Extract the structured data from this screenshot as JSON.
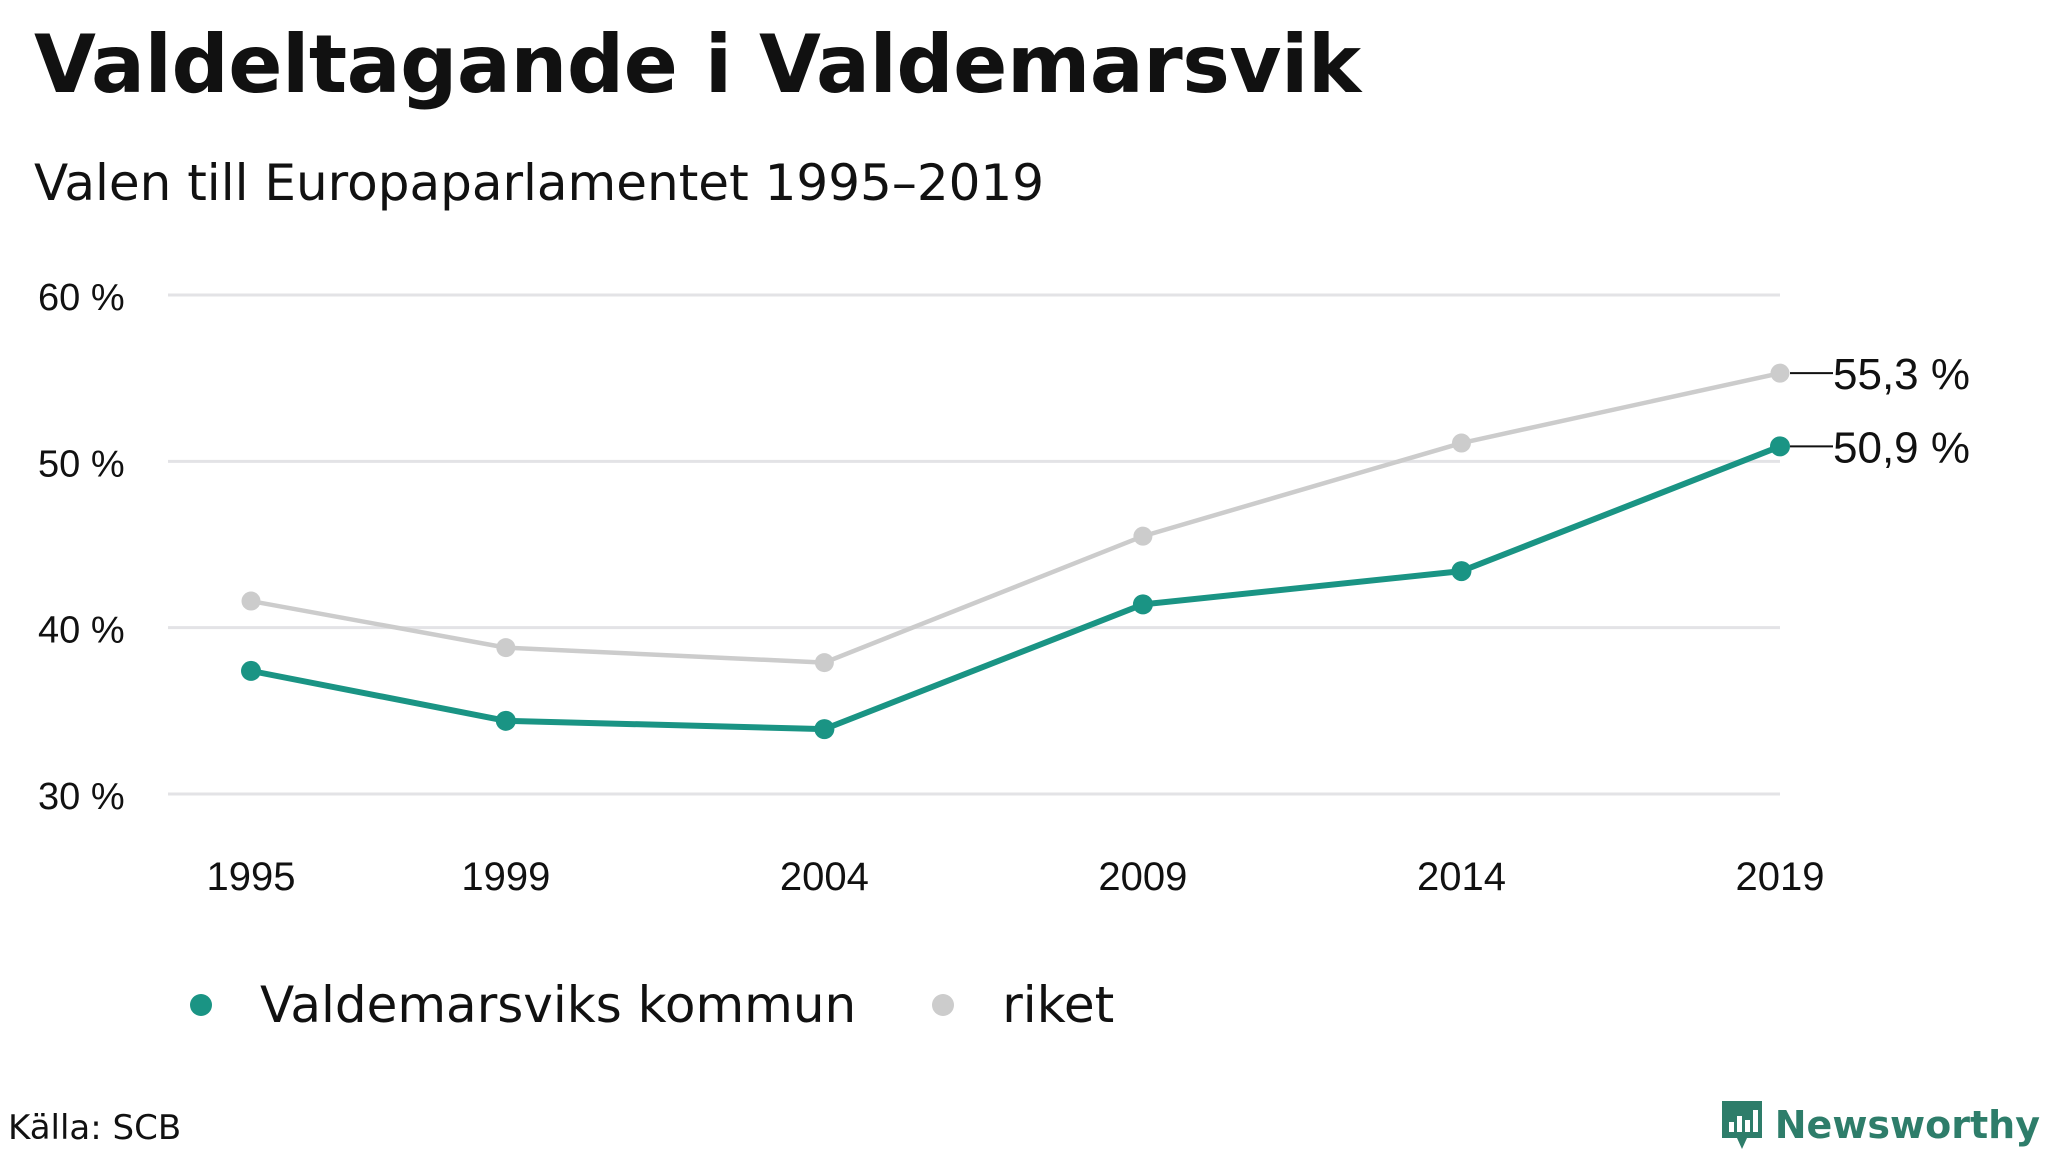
{
  "header": {
    "title": "Valdeltagande i Valdemarsvik",
    "subtitle": "Valen till Europaparlamentet 1995–2019"
  },
  "chart_data": {
    "type": "line",
    "x": [
      "1995",
      "1999",
      "2004",
      "2009",
      "2014",
      "2019"
    ],
    "x_numeric": [
      1995,
      1999,
      2004,
      2009,
      2014,
      2019
    ],
    "yticks": [
      "30 %",
      "40 %",
      "50 %",
      "60 %"
    ],
    "ytick_values": [
      30,
      40,
      50,
      60
    ],
    "ylim": [
      30,
      60
    ],
    "grid": true,
    "legend_placement": "bottom-left",
    "series": [
      {
        "name": "Valdemarsviks kommun",
        "color": "#1a9484",
        "values": [
          37.4,
          34.4,
          33.9,
          41.4,
          43.4,
          50.9
        ],
        "end_label": "50,9 %"
      },
      {
        "name": "riket",
        "color": "#cccccc",
        "values": [
          41.6,
          38.8,
          37.9,
          45.5,
          51.1,
          55.3
        ],
        "end_label": "55,3 %"
      }
    ]
  },
  "footer": {
    "source": "Källa: SCB",
    "brand": "Newsworthy",
    "brand_color": "#2e7d6a"
  }
}
